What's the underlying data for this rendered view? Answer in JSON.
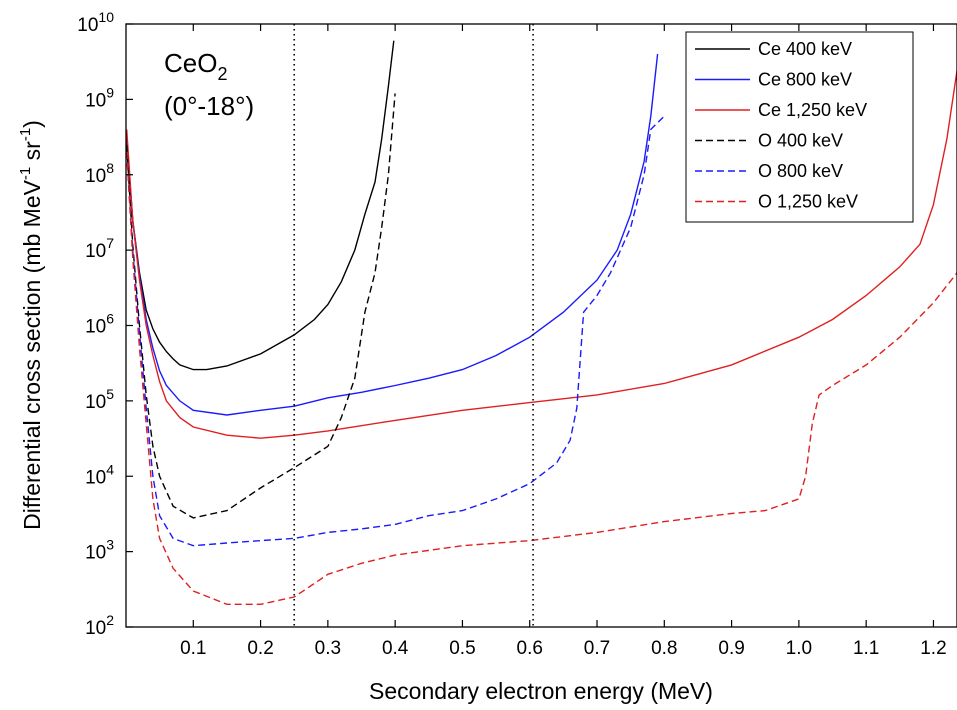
{
  "chart_data": {
    "type": "line",
    "title": "",
    "xlabel": "Secondary electron energy (MeV)",
    "ylabel": {
      "base": "Differential cross section (mb MeV",
      "exp1": "-1",
      "mid": " sr",
      "exp2": "-1",
      "end": ")"
    },
    "xlim": [
      0.0,
      1.235
    ],
    "ylim": [
      100,
      10000000000
    ],
    "y_scale": "log",
    "x_ticks": [
      {
        "value": 0.1,
        "label": "0.1"
      },
      {
        "value": 0.2,
        "label": "0.2"
      },
      {
        "value": 0.3,
        "label": "0.3"
      },
      {
        "value": 0.4,
        "label": "0.4"
      },
      {
        "value": 0.5,
        "label": "0.5"
      },
      {
        "value": 0.6,
        "label": "0.6"
      },
      {
        "value": 0.7,
        "label": "0.7"
      },
      {
        "value": 0.8,
        "label": "0.8"
      },
      {
        "value": 0.9,
        "label": "0.9"
      },
      {
        "value": 1.0,
        "label": "1.0"
      },
      {
        "value": 1.1,
        "label": "1.1"
      },
      {
        "value": 1.2,
        "label": "1.2"
      }
    ],
    "y_ticks": [
      {
        "value": 100,
        "base": "10",
        "exp": "2"
      },
      {
        "value": 1000,
        "base": "10",
        "exp": "3"
      },
      {
        "value": 10000,
        "base": "10",
        "exp": "4"
      },
      {
        "value": 100000,
        "base": "10",
        "exp": "5"
      },
      {
        "value": 1000000,
        "base": "10",
        "exp": "6"
      },
      {
        "value": 10000000,
        "base": "10",
        "exp": "7"
      },
      {
        "value": 100000000,
        "base": "10",
        "exp": "8"
      },
      {
        "value": 1000000000,
        "base": "10",
        "exp": "9"
      },
      {
        "value": 10000000000,
        "base": "10",
        "exp": "10"
      }
    ],
    "annotation": {
      "line1_base": "CeO",
      "line1_sub": "2",
      "line2": "(0°-18°)"
    },
    "vertical_markers": [
      0.25,
      0.605
    ],
    "grid": false,
    "legend_position": "top-right",
    "series": [
      {
        "name": "Ce 400 keV",
        "color": "#000000",
        "dash": "solid",
        "points": [
          [
            0.001,
            300000000.0
          ],
          [
            0.01,
            25000000.0
          ],
          [
            0.02,
            5000000.0
          ],
          [
            0.03,
            1600000.0
          ],
          [
            0.04,
            900000.0
          ],
          [
            0.05,
            600000.0
          ],
          [
            0.06,
            450000.0
          ],
          [
            0.07,
            360000.0
          ],
          [
            0.08,
            300000.0
          ],
          [
            0.1,
            260000.0
          ],
          [
            0.12,
            260000.0
          ],
          [
            0.15,
            290000.0
          ],
          [
            0.2,
            420000.0
          ],
          [
            0.25,
            750000.0
          ],
          [
            0.28,
            1200000.0
          ],
          [
            0.3,
            1900000.0
          ],
          [
            0.32,
            3800000.0
          ],
          [
            0.34,
            10000000.0
          ],
          [
            0.355,
            30000000.0
          ],
          [
            0.37,
            80000000.0
          ],
          [
            0.38,
            300000000.0
          ],
          [
            0.39,
            1500000000.0
          ],
          [
            0.398,
            6000000000.0
          ]
        ]
      },
      {
        "name": "Ce 800 keV",
        "color": "#1a1aff",
        "dash": "solid",
        "points": [
          [
            0.001,
            300000000.0
          ],
          [
            0.01,
            25000000.0
          ],
          [
            0.02,
            4500000.0
          ],
          [
            0.03,
            1200000.0
          ],
          [
            0.04,
            500000.0
          ],
          [
            0.05,
            250000.0
          ],
          [
            0.06,
            160000.0
          ],
          [
            0.08,
            100000.0
          ],
          [
            0.1,
            75000.0
          ],
          [
            0.15,
            65000.0
          ],
          [
            0.2,
            75000.0
          ],
          [
            0.25,
            85000.0
          ],
          [
            0.3,
            110000.0
          ],
          [
            0.35,
            130000.0
          ],
          [
            0.4,
            160000.0
          ],
          [
            0.45,
            200000.0
          ],
          [
            0.5,
            260000.0
          ],
          [
            0.55,
            400000.0
          ],
          [
            0.6,
            700000.0
          ],
          [
            0.65,
            1500000.0
          ],
          [
            0.7,
            4000000.0
          ],
          [
            0.73,
            10000000.0
          ],
          [
            0.75,
            30000000.0
          ],
          [
            0.77,
            150000000.0
          ],
          [
            0.78,
            600000000.0
          ],
          [
            0.79,
            4000000000.0
          ]
        ]
      },
      {
        "name": "Ce 1,250 keV",
        "color": "#e02020",
        "dash": "solid",
        "points": [
          [
            0.001,
            400000000.0
          ],
          [
            0.01,
            25000000.0
          ],
          [
            0.02,
            4000000.0
          ],
          [
            0.03,
            1000000.0
          ],
          [
            0.04,
            400000.0
          ],
          [
            0.05,
            180000.0
          ],
          [
            0.06,
            100000.0
          ],
          [
            0.08,
            60000.0
          ],
          [
            0.1,
            45000.0
          ],
          [
            0.15,
            35000.0
          ],
          [
            0.2,
            32000.0
          ],
          [
            0.25,
            35000.0
          ],
          [
            0.3,
            40000.0
          ],
          [
            0.4,
            55000.0
          ],
          [
            0.5,
            75000.0
          ],
          [
            0.6,
            95000.0
          ],
          [
            0.7,
            120000.0
          ],
          [
            0.8,
            170000.0
          ],
          [
            0.9,
            300000.0
          ],
          [
            1.0,
            700000.0
          ],
          [
            1.05,
            1200000.0
          ],
          [
            1.1,
            2500000.0
          ],
          [
            1.15,
            6000000.0
          ],
          [
            1.18,
            12000000.0
          ],
          [
            1.2,
            40000000.0
          ],
          [
            1.22,
            300000000.0
          ],
          [
            1.235,
            2400000000.0
          ]
        ]
      },
      {
        "name": "O 400 keV",
        "color": "#000000",
        "dash": "dashed",
        "points": [
          [
            0.001,
            250000000.0
          ],
          [
            0.01,
            12000000.0
          ],
          [
            0.02,
            1000000.0
          ],
          [
            0.03,
            120000.0
          ],
          [
            0.04,
            25000.0
          ],
          [
            0.05,
            10000.0
          ],
          [
            0.07,
            4000.0
          ],
          [
            0.1,
            2800.0
          ],
          [
            0.15,
            3500.0
          ],
          [
            0.2,
            7000.0
          ],
          [
            0.25,
            13000.0
          ],
          [
            0.3,
            25000.0
          ],
          [
            0.32,
            60000.0
          ],
          [
            0.34,
            200000.0
          ],
          [
            0.355,
            1500000.0
          ],
          [
            0.37,
            5000000.0
          ],
          [
            0.38,
            20000000.0
          ],
          [
            0.39,
            100000000.0
          ],
          [
            0.4,
            1200000000.0
          ]
        ]
      },
      {
        "name": "O 800 keV",
        "color": "#1a1aff",
        "dash": "dashed",
        "points": [
          [
            0.001,
            200000000.0
          ],
          [
            0.01,
            10000000.0
          ],
          [
            0.02,
            800000.0
          ],
          [
            0.03,
            80000.0
          ],
          [
            0.04,
            10000.0
          ],
          [
            0.05,
            3000.0
          ],
          [
            0.07,
            1500.0
          ],
          [
            0.1,
            1200.0
          ],
          [
            0.15,
            1300.0
          ],
          [
            0.2,
            1400.0
          ],
          [
            0.25,
            1500.0
          ],
          [
            0.3,
            1800.0
          ],
          [
            0.35,
            2000.0
          ],
          [
            0.4,
            2300.0
          ],
          [
            0.45,
            3000.0
          ],
          [
            0.5,
            3500.0
          ],
          [
            0.55,
            5000.0
          ],
          [
            0.6,
            8000.0
          ],
          [
            0.64,
            15000.0
          ],
          [
            0.66,
            30000.0
          ],
          [
            0.67,
            80000.0
          ],
          [
            0.68,
            1500000.0
          ],
          [
            0.7,
            2500000.0
          ],
          [
            0.72,
            5000000.0
          ],
          [
            0.75,
            20000000.0
          ],
          [
            0.77,
            100000000.0
          ],
          [
            0.78,
            400000000.0
          ],
          [
            0.8,
            600000000.0
          ]
        ]
      },
      {
        "name": "O 1,250 keV",
        "color": "#e02020",
        "dash": "dashed",
        "points": [
          [
            0.001,
            200000000.0
          ],
          [
            0.01,
            8000000.0
          ],
          [
            0.02,
            500000.0
          ],
          [
            0.03,
            50000.0
          ],
          [
            0.04,
            5000.0
          ],
          [
            0.05,
            1500.0
          ],
          [
            0.07,
            600.0
          ],
          [
            0.1,
            300.0
          ],
          [
            0.15,
            200.0
          ],
          [
            0.2,
            200.0
          ],
          [
            0.25,
            250.0
          ],
          [
            0.3,
            500.0
          ],
          [
            0.35,
            700.0
          ],
          [
            0.4,
            900.0
          ],
          [
            0.5,
            1200.0
          ],
          [
            0.6,
            1400.0
          ],
          [
            0.7,
            1800.0
          ],
          [
            0.8,
            2500.0
          ],
          [
            0.9,
            3200.0
          ],
          [
            0.95,
            3500.0
          ],
          [
            1.0,
            5000.0
          ],
          [
            1.01,
            10000.0
          ],
          [
            1.02,
            50000.0
          ],
          [
            1.03,
            120000.0
          ],
          [
            1.05,
            160000.0
          ],
          [
            1.1,
            300000.0
          ],
          [
            1.15,
            700000.0
          ],
          [
            1.2,
            2000000.0
          ],
          [
            1.235,
            5000000.0
          ]
        ]
      }
    ]
  }
}
